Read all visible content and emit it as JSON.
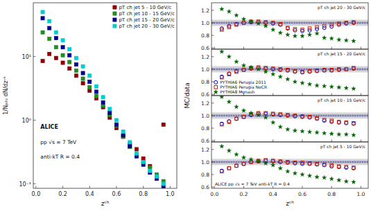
{
  "chart_data": [
    {
      "type": "scatter",
      "log": "y",
      "grid": false,
      "legend": "upper right",
      "xlabel": "zᶜʰ",
      "ylabel": "1/Nⱼₑₜₛ dN/dzᶜʰ",
      "xlim": [
        -0.02,
        1.05
      ],
      "ylim": [
        0.085,
        70
      ],
      "xticks": [
        {
          "value": 0,
          "label": "0.0"
        },
        0.2,
        0.4,
        0.6,
        0.8,
        {
          "value": 1,
          "label": "1.0"
        }
      ],
      "yticks": [
        {
          "value": 0.1,
          "label": "10⁻¹"
        },
        {
          "value": 1,
          "label": "10⁰"
        },
        {
          "value": 10,
          "label": "10¹"
        }
      ],
      "annotations": [
        "ALICE",
        "pp √s = 7 TeV",
        "anti-kT R = 0.4"
      ],
      "x": [
        0.05,
        0.1,
        0.15,
        0.2,
        0.25,
        0.3,
        0.35,
        0.4,
        0.45,
        0.5,
        0.55,
        0.6,
        0.65,
        0.7,
        0.75,
        0.8,
        0.85,
        0.9,
        0.95
      ],
      "series": [
        {
          "name": "pT ch jet 5 - 10 GeV/c",
          "color": "#8B0000",
          "marker": "square",
          "values": [
            8.5,
            11.0,
            9.5,
            8.0,
            6.5,
            5.0,
            3.8,
            2.9,
            2.2,
            1.6,
            1.1,
            0.75,
            0.55,
            0.42,
            0.35,
            0.25,
            0.19,
            0.13,
            0.85
          ]
        },
        {
          "name": "pT ch jet 10 - 15 GeV/c",
          "color": "#228B22",
          "marker": "square",
          "values": [
            24.0,
            19.0,
            14.0,
            10.5,
            8.2,
            6.0,
            4.5,
            3.3,
            2.4,
            1.7,
            1.2,
            0.82,
            0.56,
            0.38,
            0.28,
            0.22,
            0.18,
            0.14,
            0.11
          ]
        },
        {
          "name": "pT ch jet 15 - 20 GeV/c",
          "color": "#00008B",
          "marker": "square",
          "values": [
            40.0,
            28.0,
            19.5,
            14.0,
            10.5,
            7.5,
            5.5,
            4.0,
            2.8,
            1.9,
            1.3,
            0.85,
            0.58,
            0.39,
            0.27,
            0.2,
            0.15,
            0.12,
            0.09
          ]
        },
        {
          "name": "pT ch jet 20 - 30 GeV/c",
          "color": "#00CED1",
          "marker": "square",
          "values": [
            50.0,
            36.0,
            24.0,
            18.0,
            13.0,
            9.5,
            7.0,
            5.0,
            3.4,
            2.3,
            1.5,
            1.0,
            0.66,
            0.45,
            0.3,
            0.22,
            0.16,
            0.13,
            0.1
          ]
        }
      ]
    },
    {
      "type": "scatter",
      "grid": false,
      "tick_labels": "y",
      "ylabel": "MC/data",
      "xlim": [
        -0.02,
        1.05
      ],
      "ylim": [
        0.58,
        1.32
      ],
      "xticks": [
        {
          "value": 0,
          "label": "0.0"
        },
        0.2,
        0.4,
        0.6,
        0.8,
        {
          "value": 1,
          "label": "1.0"
        }
      ],
      "yticks": [
        0.6,
        0.8,
        {
          "value": 1.0,
          "label": "1.0"
        },
        1.2
      ],
      "bands": [
        {
          "low": 0.95,
          "high": 1.05,
          "color": "#BBBBBB"
        },
        {
          "low": 0.98,
          "high": 1.02,
          "color": "#8888CC"
        }
      ],
      "reference_line": 1.0,
      "annotations": [
        "pT ch jet 20 - 30 GeV/c"
      ],
      "x": [
        0.05,
        0.1,
        0.15,
        0.2,
        0.25,
        0.3,
        0.35,
        0.4,
        0.45,
        0.5,
        0.55,
        0.6,
        0.65,
        0.7,
        0.75,
        0.8,
        0.85,
        0.9,
        0.95
      ],
      "series": [
        {
          "name": "PYTHIA6 Perugia 2011",
          "color": "#0000CC",
          "marker": "circle-open",
          "values": [
            0.91,
            0.95,
            0.98,
            1.0,
            1.01,
            1.01,
            1.0,
            0.99,
            0.97,
            0.91,
            0.88,
            0.87,
            0.88,
            0.9,
            0.92,
            0.94,
            0.97,
            0.99,
            1.0
          ]
        },
        {
          "name": "PYTHIA6 Perugia NoCR",
          "color": "#CC2200",
          "marker": "square-open",
          "values": [
            0.89,
            0.93,
            0.97,
            1.0,
            1.02,
            1.02,
            1.01,
            1.0,
            0.98,
            0.92,
            0.9,
            0.89,
            0.91,
            0.93,
            0.95,
            0.97,
            0.99,
            1.0,
            1.01
          ]
        },
        {
          "name": "PYTHIA8 Monash",
          "color": "#006400",
          "marker": "star",
          "values": [
            1.22,
            1.18,
            1.12,
            1.06,
            1.02,
            0.99,
            0.95,
            0.89,
            0.84,
            0.81,
            0.79,
            0.79,
            0.81,
            0.83,
            0.76,
            0.75,
            0.73,
            0.72,
            0.71
          ]
        }
      ]
    },
    {
      "type": "scatter",
      "grid": false,
      "tick_labels": "y",
      "legend": "lower left",
      "xlim": [
        -0.02,
        1.05
      ],
      "ylim": [
        0.58,
        1.32
      ],
      "xticks": [
        {
          "value": 0,
          "label": "0.0"
        },
        0.2,
        0.4,
        0.6,
        0.8,
        {
          "value": 1,
          "label": "1.0"
        }
      ],
      "yticks": [
        0.6,
        0.8,
        {
          "value": 1.0,
          "label": "1.0"
        },
        1.2
      ],
      "bands": [
        {
          "low": 0.95,
          "high": 1.05,
          "color": "#BBBBBB"
        },
        {
          "low": 0.98,
          "high": 1.02,
          "color": "#8888CC"
        }
      ],
      "reference_line": 1.0,
      "annotations": [
        "pT ch jet 15 - 20 GeV/c"
      ],
      "x": [
        0.05,
        0.1,
        0.15,
        0.2,
        0.25,
        0.3,
        0.35,
        0.4,
        0.45,
        0.5,
        0.55,
        0.6,
        0.65,
        0.7,
        0.75,
        0.8,
        0.85,
        0.9,
        0.95
      ],
      "series": [
        {
          "name": "PYTHIA6 Perugia 2011",
          "color": "#0000CC",
          "marker": "circle-open",
          "values": [
            0.88,
            0.93,
            0.97,
            0.99,
            1.01,
            1.02,
            1.01,
            1.0,
            0.99,
            0.98,
            0.96,
            0.95,
            0.96,
            0.97,
            0.98,
            0.98,
            0.99,
            1.0,
            1.01
          ]
        },
        {
          "name": "PYTHIA6 Perugia NoCR",
          "color": "#CC2200",
          "marker": "square-open",
          "values": [
            0.87,
            0.92,
            0.96,
            0.99,
            1.02,
            1.03,
            1.02,
            1.01,
            1.0,
            0.99,
            0.97,
            0.96,
            0.97,
            0.98,
            0.99,
            0.99,
            1.0,
            1.0,
            1.02
          ]
        },
        {
          "name": "PYTHIA8 Monash",
          "color": "#006400",
          "marker": "star",
          "values": [
            1.28,
            1.2,
            1.12,
            1.06,
            1.03,
            1.0,
            0.96,
            0.92,
            0.88,
            0.84,
            0.8,
            0.78,
            0.76,
            0.74,
            0.73,
            0.72,
            0.71,
            0.7,
            0.69
          ]
        }
      ]
    },
    {
      "type": "scatter",
      "grid": false,
      "tick_labels": "y",
      "xlim": [
        -0.02,
        1.05
      ],
      "ylim": [
        0.58,
        1.32
      ],
      "xticks": [
        {
          "value": 0,
          "label": "0.0"
        },
        0.2,
        0.4,
        0.6,
        0.8,
        {
          "value": 1,
          "label": "1.0"
        }
      ],
      "yticks": [
        0.6,
        0.8,
        {
          "value": 1.0,
          "label": "1.0"
        },
        1.2
      ],
      "bands": [
        {
          "low": 0.95,
          "high": 1.05,
          "color": "#BBBBBB"
        },
        {
          "low": 0.98,
          "high": 1.02,
          "color": "#8888CC"
        }
      ],
      "reference_line": 1.0,
      "annotations": [
        "pT ch jet 10 - 15 GeV/c"
      ],
      "x": [
        0.05,
        0.1,
        0.15,
        0.2,
        0.25,
        0.3,
        0.35,
        0.4,
        0.45,
        0.5,
        0.55,
        0.6,
        0.65,
        0.7,
        0.75,
        0.8,
        0.85,
        0.9,
        0.95
      ],
      "series": [
        {
          "name": "PYTHIA6 Perugia 2011",
          "color": "#0000CC",
          "marker": "circle-open",
          "values": [
            0.87,
            0.91,
            0.95,
            0.98,
            1.01,
            1.03,
            1.03,
            1.02,
            1.01,
            1.0,
            0.99,
            0.98,
            0.97,
            0.95,
            0.92,
            0.9,
            0.89,
            0.88,
            0.87
          ]
        },
        {
          "name": "PYTHIA6 Perugia NoCR",
          "color": "#CC2200",
          "marker": "square-open",
          "values": [
            0.86,
            0.9,
            0.95,
            0.98,
            1.02,
            1.04,
            1.04,
            1.03,
            1.02,
            1.01,
            1.0,
            0.99,
            0.98,
            0.96,
            0.93,
            0.92,
            0.9,
            0.89,
            0.88
          ]
        },
        {
          "name": "PYTHIA8 Monash",
          "color": "#006400",
          "marker": "star",
          "values": [
            1.3,
            1.22,
            1.14,
            1.08,
            1.04,
            1.01,
            0.97,
            0.89,
            0.82,
            0.78,
            0.76,
            0.75,
            0.74,
            0.73,
            0.72,
            0.71,
            0.7,
            0.7,
            0.69
          ]
        }
      ]
    },
    {
      "type": "scatter",
      "grid": false,
      "xlabel": "zᶜʰ",
      "xlim": [
        -0.02,
        1.05
      ],
      "ylim": [
        0.58,
        1.32
      ],
      "xticks": [
        {
          "value": 0,
          "label": "0.0"
        },
        0.2,
        0.4,
        0.6,
        0.8,
        {
          "value": 1,
          "label": "1.0"
        }
      ],
      "yticks": [
        0.6,
        0.8,
        {
          "value": 1.0,
          "label": "1.0"
        },
        1.2
      ],
      "bands": [
        {
          "low": 0.95,
          "high": 1.05,
          "color": "#BBBBBB"
        },
        {
          "low": 0.98,
          "high": 1.02,
          "color": "#8888CC"
        }
      ],
      "reference_line": 1.0,
      "annotations": [
        "pT ch jet 5 - 10 GeV/c",
        "ALICE  pp √s = 7 TeV  anti-kT R = 0.4"
      ],
      "x": [
        0.05,
        0.1,
        0.15,
        0.2,
        0.25,
        0.3,
        0.35,
        0.4,
        0.45,
        0.5,
        0.55,
        0.6,
        0.65,
        0.7,
        0.75,
        0.8,
        0.85,
        0.9,
        0.95
      ],
      "series": [
        {
          "name": "PYTHIA6 Perugia 2011",
          "color": "#0000CC",
          "marker": "circle-open",
          "values": [
            0.86,
            0.9,
            0.94,
            0.97,
            1.0,
            1.01,
            1.02,
            1.01,
            1.0,
            0.99,
            0.98,
            0.97,
            0.97,
            0.96,
            0.95,
            0.93,
            0.92,
            0.91,
            0.9
          ]
        },
        {
          "name": "PYTHIA6 Perugia NoCR",
          "color": "#CC2200",
          "marker": "square-open",
          "values": [
            0.85,
            0.9,
            0.94,
            0.97,
            1.0,
            1.02,
            1.03,
            1.02,
            1.01,
            1.0,
            0.99,
            0.99,
            0.98,
            0.97,
            0.96,
            0.95,
            0.93,
            0.92,
            0.91
          ]
        },
        {
          "name": "PYTHIA8 Monash",
          "color": "#006400",
          "marker": "star",
          "values": [
            1.25,
            1.18,
            1.12,
            1.07,
            1.04,
            1.01,
            0.98,
            0.95,
            0.9,
            0.85,
            0.82,
            0.8,
            0.78,
            0.76,
            0.75,
            0.73,
            0.71,
            0.69,
            0.68
          ]
        }
      ]
    }
  ]
}
